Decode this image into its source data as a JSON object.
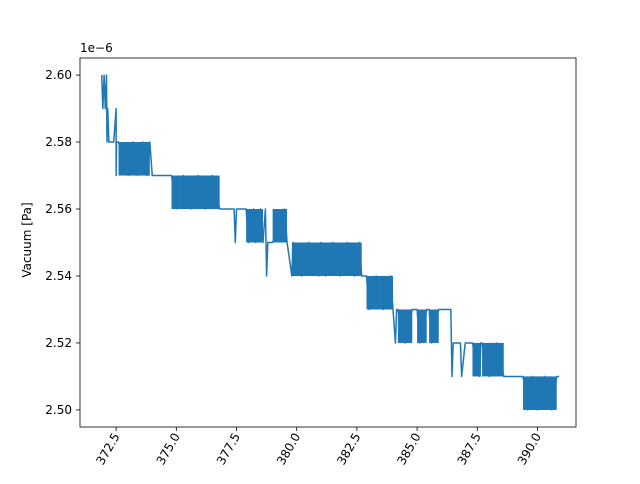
{
  "chart_data": {
    "type": "line",
    "title": "",
    "xlabel": "",
    "ylabel": "Vacuum [Pa]",
    "y_offset_label": "1e−6",
    "xlim": [
      371.0,
      391.6
    ],
    "ylim": [
      2.4949,
      2.6051
    ],
    "grid": false,
    "legend": "none",
    "x_ticks": [
      372.5,
      375.0,
      377.5,
      380.0,
      382.5,
      385.0,
      387.5,
      390.0
    ],
    "x_tick_labels": [
      "372.5",
      "375.0",
      "377.5",
      "380.0",
      "382.5",
      "385.0",
      "387.5",
      "390.0"
    ],
    "y_ticks": [
      2.5,
      2.52,
      2.54,
      2.56,
      2.58,
      2.6
    ],
    "y_tick_labels": [
      "2.50",
      "2.52",
      "2.54",
      "2.56",
      "2.58",
      "2.60"
    ],
    "series": [
      {
        "color": "#1f77b4",
        "x": [
          371.9,
          371.95,
          372.0,
          372.05,
          372.1,
          372.12,
          372.15,
          372.2,
          372.4,
          372.5,
          372.5,
          372.52,
          372.6,
          373.0,
          373.2,
          373.4,
          373.6,
          373.8,
          373.9,
          374.0,
          374.5,
          374.8,
          375.0,
          375.3,
          375.6,
          375.9,
          376.2,
          376.5,
          376.8,
          377.0,
          377.3,
          377.4,
          377.45,
          377.5,
          377.9,
          378.0,
          378.2,
          378.3,
          378.5,
          378.6,
          378.7,
          378.75,
          378.8,
          379.0,
          379.5,
          379.6,
          379.8,
          379.85,
          380.2,
          380.5,
          380.9,
          381.0,
          381.2,
          381.5,
          381.8,
          382.1,
          382.4,
          382.6,
          382.7,
          382.75,
          382.9,
          383.0,
          383.3,
          383.6,
          383.9,
          384.0,
          384.1,
          384.15,
          384.2,
          384.5,
          384.8,
          385.0,
          385.1,
          385.4,
          385.5,
          385.6,
          385.9,
          386.0,
          386.2,
          386.4,
          386.45,
          386.5,
          386.8,
          386.85,
          387.0,
          387.3,
          387.6,
          387.65,
          387.7,
          388.0,
          388.3,
          388.6,
          388.8,
          389.0,
          389.2,
          389.4,
          389.6,
          389.8,
          390.0,
          390.3,
          390.6,
          390.8,
          390.9
        ],
        "y": [
          2.6,
          2.59,
          2.6,
          2.59,
          2.6,
          2.58,
          2.59,
          2.58,
          2.58,
          2.59,
          2.57,
          2.58,
          2.58,
          2.57,
          2.58,
          2.57,
          2.58,
          2.57,
          2.58,
          2.57,
          2.57,
          2.57,
          2.56,
          2.57,
          2.56,
          2.57,
          2.56,
          2.57,
          2.56,
          2.56,
          2.56,
          2.56,
          2.55,
          2.56,
          2.56,
          2.55,
          2.56,
          2.55,
          2.56,
          2.55,
          2.56,
          2.54,
          2.55,
          2.55,
          2.56,
          2.55,
          2.54,
          2.55,
          2.54,
          2.55,
          2.54,
          2.55,
          2.54,
          2.55,
          2.54,
          2.55,
          2.54,
          2.55,
          2.54,
          2.54,
          2.54,
          2.53,
          2.54,
          2.53,
          2.54,
          2.53,
          2.52,
          2.53,
          2.53,
          2.52,
          2.53,
          2.53,
          2.52,
          2.53,
          2.53,
          2.52,
          2.53,
          2.53,
          2.53,
          2.53,
          2.51,
          2.52,
          2.52,
          2.51,
          2.52,
          2.52,
          2.51,
          2.52,
          2.52,
          2.51,
          2.52,
          2.51,
          2.51,
          2.51,
          2.51,
          2.51,
          2.5,
          2.51,
          2.5,
          2.51,
          2.5,
          2.51,
          2.51
        ]
      }
    ]
  }
}
